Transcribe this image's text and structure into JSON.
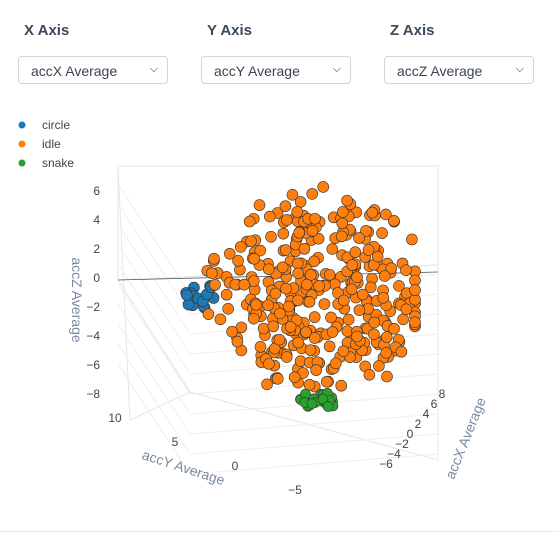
{
  "controls": [
    {
      "label": "X Axis",
      "selected": "accX Average"
    },
    {
      "label": "Y Axis",
      "selected": "accY Average"
    },
    {
      "label": "Z Axis",
      "selected": "accZ Average"
    }
  ],
  "chart_data": {
    "type": "scatter",
    "dimensions": 3,
    "xlabel": "accX Average",
    "ylabel": "accY Average",
    "zlabel": "accZ Average",
    "x_ticks": [
      "8",
      "6",
      "4",
      "2",
      "0",
      "−2",
      "−4",
      "−6"
    ],
    "y_ticks": [
      "10",
      "5",
      "0",
      "−5"
    ],
    "z_ticks": [
      "6",
      "4",
      "2",
      "0",
      "−2",
      "−4",
      "−6",
      "−8"
    ],
    "legend_position": "top-left",
    "series": [
      {
        "name": "circle",
        "color": "#1f77b4",
        "description_points": [
          [
            -2,
            7,
            -1
          ],
          [
            -2.5,
            7.5,
            -1.5
          ],
          [
            -1.5,
            6.5,
            -0.5
          ],
          [
            -2,
            8,
            -2
          ],
          [
            -1,
            7,
            -1
          ],
          [
            -2.2,
            6.8,
            0
          ],
          [
            -1.8,
            7.2,
            -2.5
          ]
        ]
      },
      {
        "name": "idle",
        "color": "#ff7f0e",
        "description_points": [
          [
            0,
            0,
            0
          ],
          [
            2,
            3,
            4
          ],
          [
            -3,
            -2,
            2
          ],
          [
            4,
            -4,
            -3
          ],
          [
            -4,
            4,
            5
          ],
          [
            1,
            2,
            -5
          ],
          [
            5,
            1,
            1
          ],
          [
            -1,
            -5,
            3
          ],
          [
            3,
            5,
            -2
          ],
          [
            -5,
            0,
            -1
          ]
        ]
      },
      {
        "name": "snake",
        "color": "#2ca02c",
        "description_points": [
          [
            1,
            -3,
            -8
          ],
          [
            1.5,
            -3.5,
            -8.5
          ],
          [
            0.5,
            -2.5,
            -8
          ],
          [
            1,
            -4,
            -8.2
          ],
          [
            2,
            -3,
            -8.4
          ],
          [
            0.8,
            -3.2,
            -7.8
          ]
        ]
      }
    ]
  }
}
